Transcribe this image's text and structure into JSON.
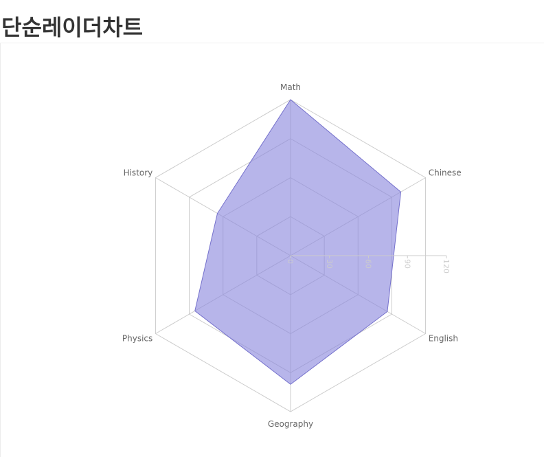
{
  "page": {
    "title": "단순레이더차트"
  },
  "colors": {
    "grid": "#cccccc",
    "fill": "#8b87dd",
    "stroke": "#7571cc",
    "label": "#666666",
    "tick": "#cccccc"
  },
  "chart_data": {
    "type": "radar",
    "title": "",
    "indicators": [
      "Math",
      "Chinese",
      "English",
      "Geography",
      "Physics",
      "History"
    ],
    "max": 120,
    "ticks": [
      0,
      30,
      60,
      90,
      120
    ],
    "series": [
      {
        "values": [
          120,
          98,
          86,
          99,
          85,
          65
        ]
      }
    ],
    "grid": true,
    "legend": "none"
  }
}
